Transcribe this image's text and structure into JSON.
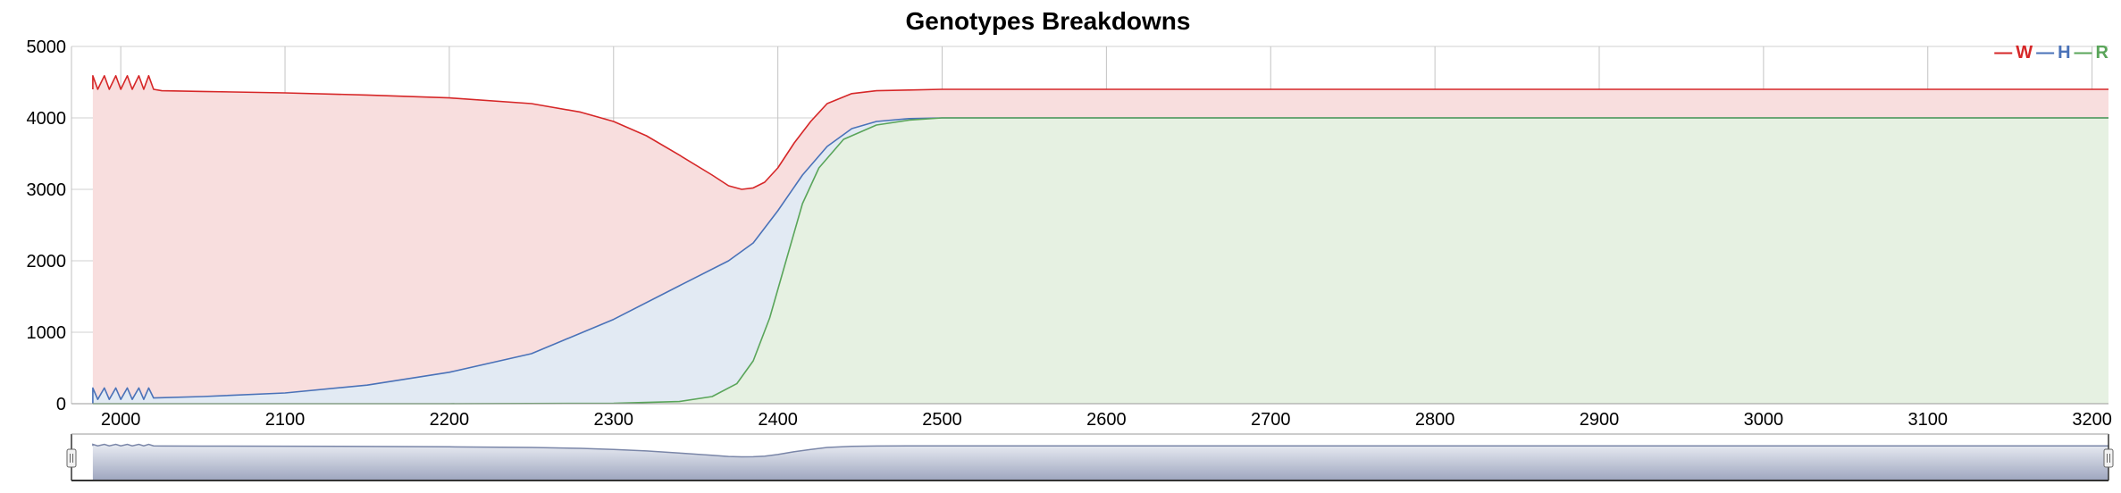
{
  "chart_data": {
    "type": "area",
    "title": "Genotypes Breakdowns",
    "xlabel": "",
    "ylabel": "",
    "xlim": [
      1970,
      3210
    ],
    "ylim": [
      0,
      5000
    ],
    "x_ticks": [
      2000,
      2100,
      2200,
      2300,
      2400,
      2500,
      2600,
      2700,
      2800,
      2900,
      3000,
      3100,
      3200
    ],
    "y_ticks": [
      0,
      1000,
      2000,
      3000,
      4000,
      5000
    ],
    "grid": true,
    "legend": "top-right",
    "series": [
      {
        "name": "W",
        "color": "#d62728",
        "fill": "#f8dede",
        "points": [
          [
            1983,
            4400
          ],
          [
            1983,
            4590
          ],
          [
            1986,
            4400
          ],
          [
            1990,
            4590
          ],
          [
            1993,
            4400
          ],
          [
            1997,
            4590
          ],
          [
            2000,
            4400
          ],
          [
            2004,
            4590
          ],
          [
            2007,
            4400
          ],
          [
            2011,
            4590
          ],
          [
            2014,
            4400
          ],
          [
            2017,
            4590
          ],
          [
            2020,
            4400
          ],
          [
            2025,
            4380
          ],
          [
            2050,
            4370
          ],
          [
            2100,
            4350
          ],
          [
            2150,
            4320
          ],
          [
            2200,
            4280
          ],
          [
            2250,
            4200
          ],
          [
            2280,
            4080
          ],
          [
            2300,
            3950
          ],
          [
            2320,
            3750
          ],
          [
            2340,
            3480
          ],
          [
            2360,
            3200
          ],
          [
            2370,
            3050
          ],
          [
            2378,
            3000
          ],
          [
            2385,
            3020
          ],
          [
            2392,
            3100
          ],
          [
            2400,
            3300
          ],
          [
            2410,
            3650
          ],
          [
            2420,
            3950
          ],
          [
            2430,
            4200
          ],
          [
            2445,
            4340
          ],
          [
            2460,
            4380
          ],
          [
            2480,
            4390
          ],
          [
            2500,
            4400
          ],
          [
            2600,
            4400
          ],
          [
            2800,
            4400
          ],
          [
            3000,
            4400
          ],
          [
            3210,
            4400
          ]
        ]
      },
      {
        "name": "H",
        "color": "#4a72b8",
        "fill": "#e2eaf3",
        "points": [
          [
            1983,
            0
          ],
          [
            1983,
            220
          ],
          [
            1986,
            60
          ],
          [
            1990,
            220
          ],
          [
            1993,
            60
          ],
          [
            1997,
            220
          ],
          [
            2000,
            60
          ],
          [
            2004,
            220
          ],
          [
            2007,
            60
          ],
          [
            2011,
            220
          ],
          [
            2014,
            60
          ],
          [
            2017,
            220
          ],
          [
            2020,
            80
          ],
          [
            2050,
            100
          ],
          [
            2100,
            150
          ],
          [
            2150,
            260
          ],
          [
            2200,
            440
          ],
          [
            2250,
            700
          ],
          [
            2300,
            1180
          ],
          [
            2340,
            1650
          ],
          [
            2370,
            2000
          ],
          [
            2385,
            2250
          ],
          [
            2400,
            2700
          ],
          [
            2415,
            3200
          ],
          [
            2430,
            3600
          ],
          [
            2445,
            3850
          ],
          [
            2460,
            3950
          ],
          [
            2480,
            3990
          ],
          [
            2500,
            4000
          ],
          [
            2600,
            4000
          ],
          [
            2800,
            4000
          ],
          [
            3000,
            4000
          ],
          [
            3210,
            4000
          ]
        ]
      },
      {
        "name": "R",
        "color": "#5aa55a",
        "fill": "#e6f1e2",
        "points": [
          [
            1983,
            0
          ],
          [
            2100,
            0
          ],
          [
            2200,
            0
          ],
          [
            2300,
            5
          ],
          [
            2340,
            30
          ],
          [
            2360,
            100
          ],
          [
            2375,
            280
          ],
          [
            2385,
            600
          ],
          [
            2395,
            1200
          ],
          [
            2405,
            2000
          ],
          [
            2415,
            2800
          ],
          [
            2425,
            3300
          ],
          [
            2440,
            3700
          ],
          [
            2460,
            3900
          ],
          [
            2480,
            3970
          ],
          [
            2500,
            4000
          ],
          [
            2600,
            4000
          ],
          [
            2800,
            4000
          ],
          [
            3000,
            4000
          ],
          [
            3210,
            4000
          ]
        ]
      }
    ],
    "navigator": {
      "series": "W",
      "color": "#7a86a8",
      "fill_top": "#e8ebf2",
      "fill_bottom": "#9ea6bf"
    }
  },
  "legend": {
    "entries": [
      {
        "dash": "—",
        "name": "W",
        "color": "#d62728"
      },
      {
        "dash": "—",
        "name": "H",
        "color": "#4a72b8"
      },
      {
        "dash": "—",
        "name": "R",
        "color": "#5aa55a"
      }
    ]
  }
}
